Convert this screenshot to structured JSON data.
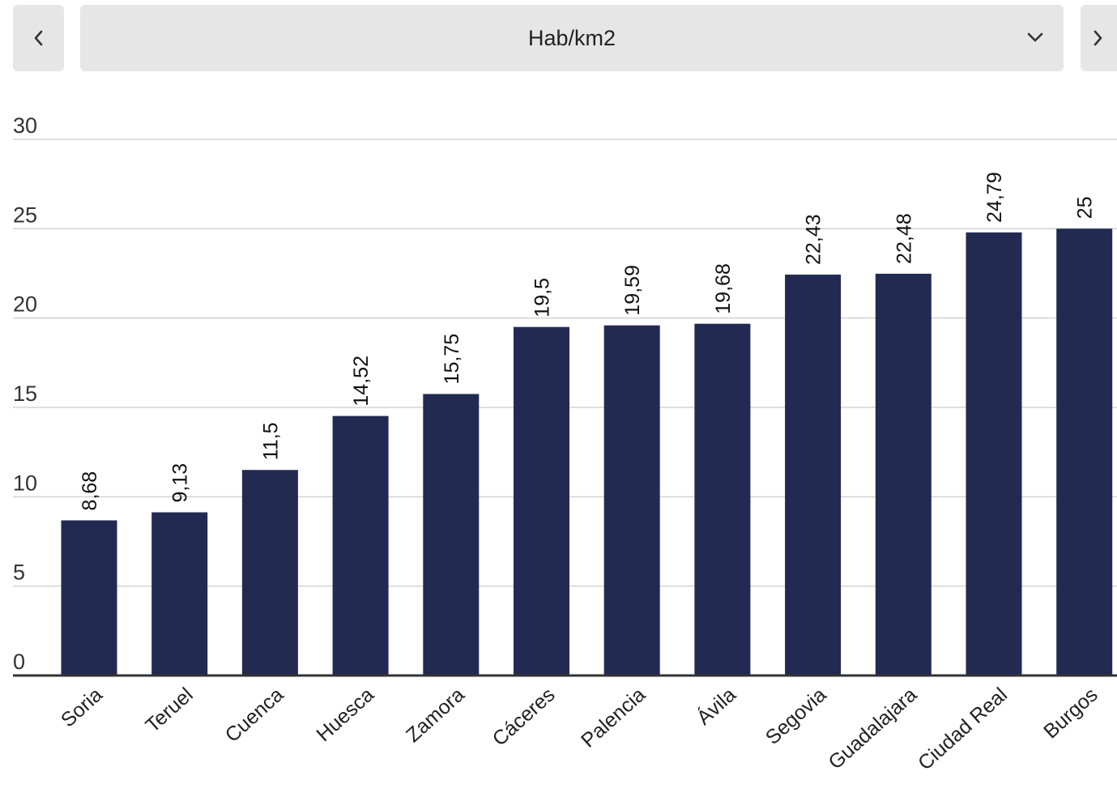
{
  "header": {
    "selector_value": "Hab/km2",
    "prev_icon": "chevron-left-icon",
    "next_icon": "chevron-right-icon",
    "dropdown_icon": "chevron-down-icon"
  },
  "colors": {
    "bar": "#222a52",
    "grid": "#d3d3d3",
    "axis": "#333333",
    "control_bg": "#e6e6e6"
  },
  "chart_data": {
    "type": "bar",
    "title": "",
    "xlabel": "",
    "ylabel": "",
    "categories": [
      "Soria",
      "Teruel",
      "Cuenca",
      "Huesca",
      "Zamora",
      "Cáceres",
      "Palencia",
      "Ávila",
      "Segovia",
      "Guadalajara",
      "Ciudad Real",
      "Burgos"
    ],
    "values": [
      8.68,
      9.13,
      11.5,
      14.52,
      15.75,
      19.5,
      19.59,
      19.68,
      22.43,
      22.48,
      24.79,
      25
    ],
    "value_labels": [
      "8,68",
      "9,13",
      "11,5",
      "14,52",
      "15,75",
      "19,5",
      "19,59",
      "19,68",
      "22,43",
      "22,48",
      "24,79",
      "25"
    ],
    "ylim": [
      0,
      30
    ],
    "yticks": [
      0,
      5,
      10,
      15,
      20,
      25,
      30
    ],
    "grid": true,
    "legend": "none"
  }
}
